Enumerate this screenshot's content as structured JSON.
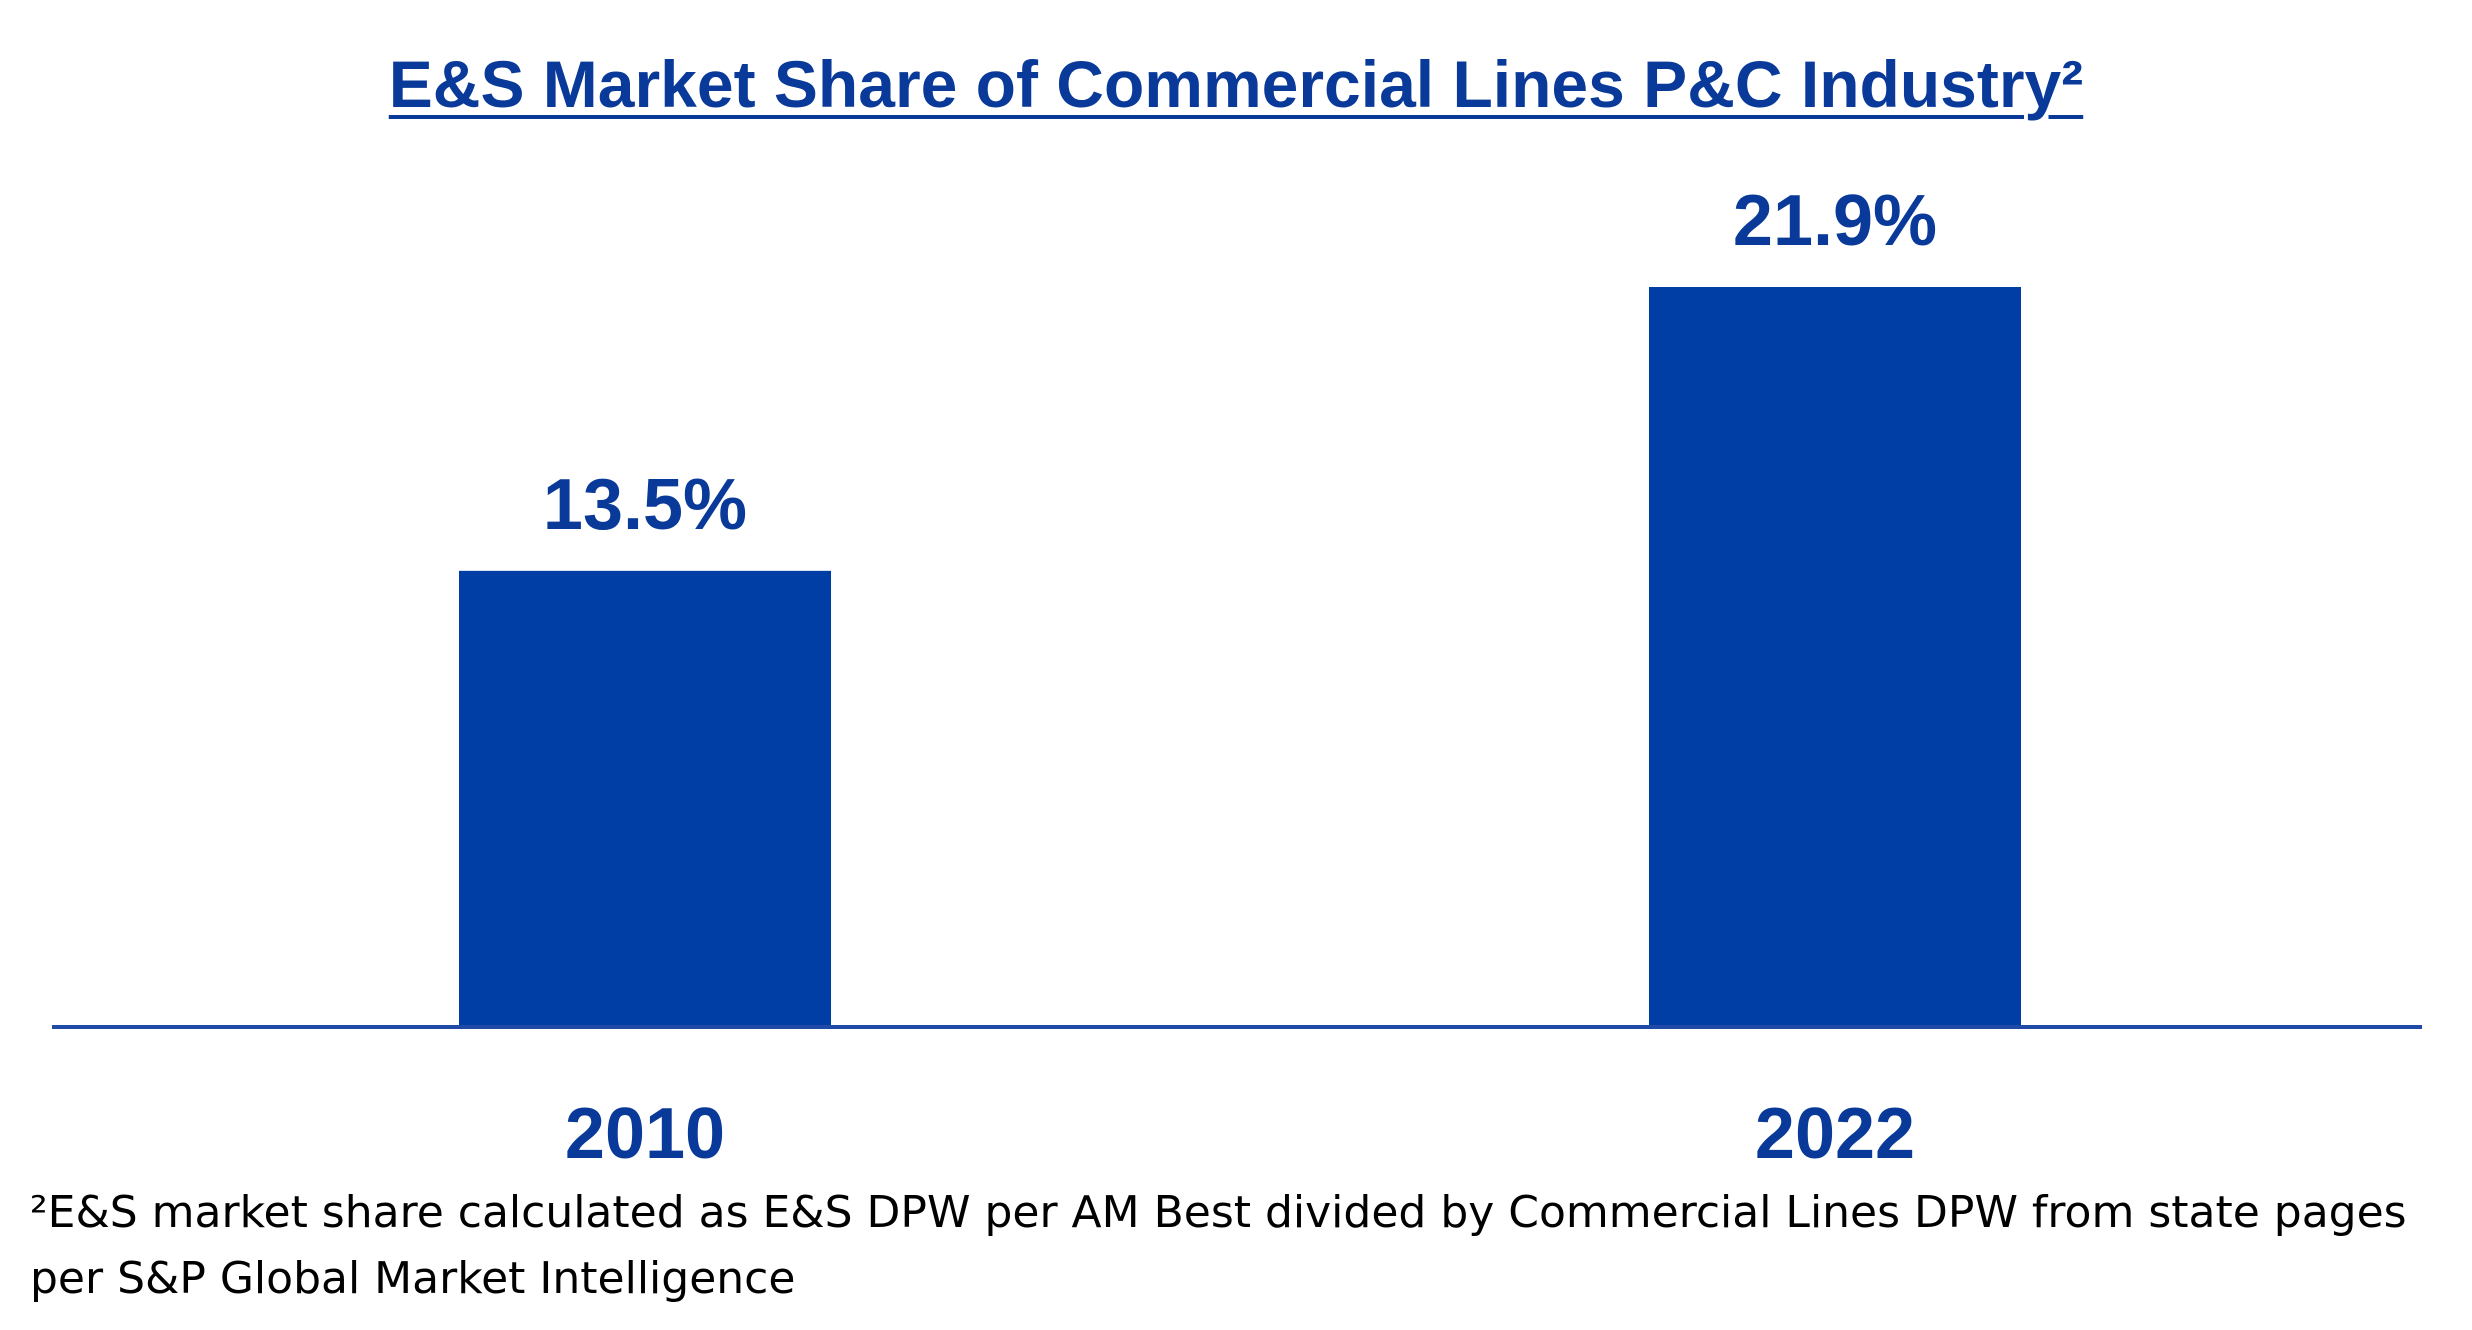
{
  "title": "E&S Market Share of Commercial Lines P&C Industry²",
  "colors": {
    "bar": "#003da5",
    "text": "#0a3a99",
    "axis": "#1f4aa5"
  },
  "chart_data": {
    "type": "bar",
    "title": "E&S Market Share of Commercial Lines P&C Industry²",
    "categories": [
      "2010",
      "2022"
    ],
    "values": [
      13.5,
      21.9
    ],
    "value_labels": [
      "13.5%",
      "21.9%"
    ],
    "xlabel": "",
    "ylabel": "",
    "ylim": [
      0,
      23
    ],
    "grid": false,
    "legend": "none"
  },
  "footnote": "²E&S market share calculated as E&S DPW per AM Best divided by Commercial Lines DPW from state pages per S&P Global Market Intelligence"
}
